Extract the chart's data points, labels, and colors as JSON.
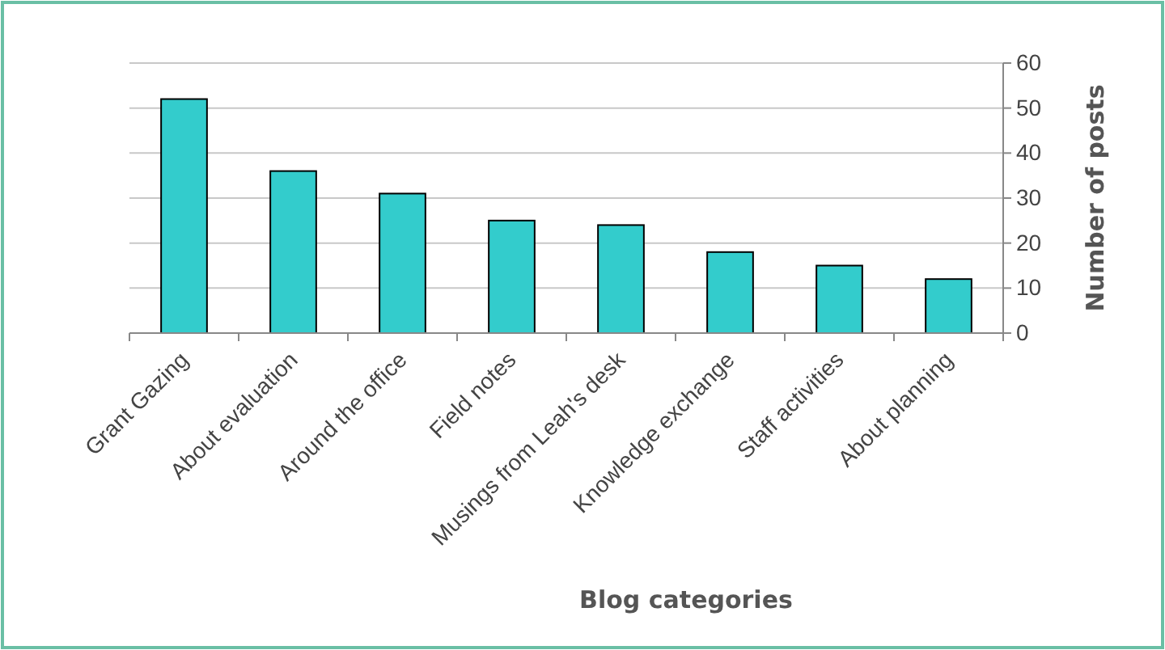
{
  "chart_data": {
    "type": "bar",
    "xlabel": "Blog categories",
    "ylabel": "Number of posts",
    "categories": [
      "Grant Gazing",
      "About evaluation",
      "Around the office",
      "Field notes",
      "Musings from Leah's desk",
      "Knowledge exchange",
      "Staff activities",
      "About planning"
    ],
    "values": [
      52,
      36,
      31,
      25,
      24,
      18,
      15,
      12
    ],
    "color": "#33cccc",
    "ylim": [
      0,
      60
    ],
    "yticks": [
      0,
      10,
      20,
      30,
      40,
      50,
      60
    ],
    "grid": "y"
  }
}
